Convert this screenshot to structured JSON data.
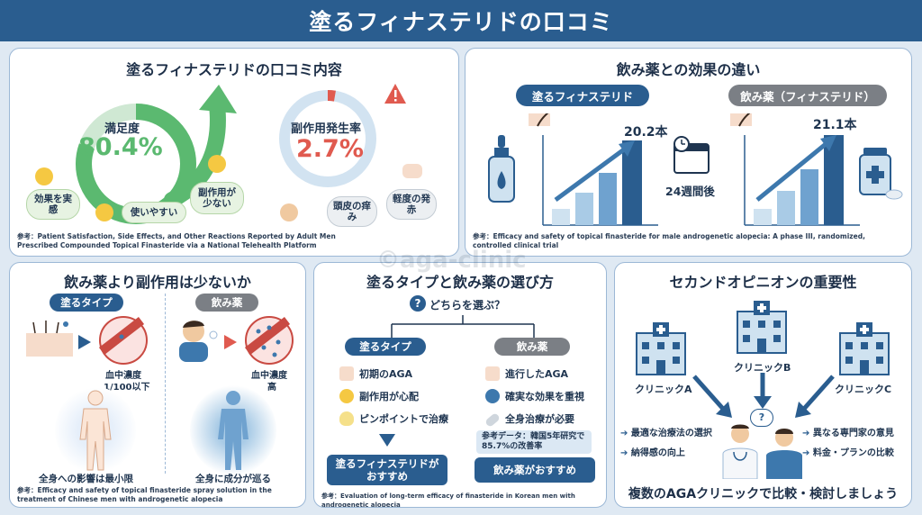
{
  "page": {
    "title": "塗るフィナステリドの口コミ",
    "watermark": "©aga-clinic"
  },
  "panel1": {
    "title": "塗るフィナステリドの口コミ内容",
    "satisfaction_label": "満足度",
    "satisfaction_value": "80.4%",
    "satisfaction_fraction": 0.804,
    "side_effect_label": "副作用発生率",
    "side_effect_value": "2.7%",
    "side_effect_fraction": 0.027,
    "bubbles": [
      "効果を実感",
      "使いやすい",
      "副作用が少ない"
    ],
    "side_bubbles": [
      "頭皮の痒み",
      "軽度の発赤"
    ],
    "ref": "参考：Patient Satisfaction, Side Effects, and Other Reactions Reported by Adult Men Prescribed Compounded Topical Finasteride via a National Telehealth Platform"
  },
  "panel2": {
    "title": "飲み薬との効果の違い",
    "left_label": "塗るフィナステリド",
    "right_label": "飲み薬（フィナステリド）",
    "left_value": "20.2本",
    "right_value": "21.1本",
    "period": "24週間後",
    "ref": "参考：Efficacy and safety of topical finasteride for male androgenetic alopecia: A phase III, randomized, controlled clinical trial"
  },
  "panel3": {
    "title": "飲み薬より副作用は少ないか",
    "left_label": "塗るタイプ",
    "right_label": "飲み薬",
    "left_conc_label": "血中濃度",
    "left_conc_value": "1/100以下",
    "right_conc_label": "血中濃度",
    "right_conc_value": "高",
    "left_caption": "全身への影響は最小限",
    "right_caption": "全身に成分が巡る",
    "ref": "参考：Efficacy and safety of topical finasteride spray solution in the treatment of Chinese men with androgenetic alopecia"
  },
  "panel4": {
    "title": "塗るタイプと飲み薬の選び方",
    "question": "どちらを選ぶ？",
    "left_label": "塗るタイプ",
    "right_label": "飲み薬",
    "left_items": [
      "初期のAGA",
      "副作用が心配",
      "ピンポイントで治療"
    ],
    "right_items": [
      "進行したAGA",
      "確実な効果を重視",
      "全身治療が必要"
    ],
    "note": "参考データ：韓国5年研究で85.7%の改善率",
    "left_button": "塗るフィナステリドがおすすめ",
    "right_button": "飲み薬がおすすめ",
    "ref": "参考：Evaluation of long-term efficacy of finasteride in Korean men with androgenetic alopecia"
  },
  "panel5": {
    "title": "セカンドオピニオンの重要性",
    "clinics": [
      "クリニックA",
      "クリニックB",
      "クリニックC"
    ],
    "left_points": [
      "最適な治療法の選択",
      "納得感の向上"
    ],
    "right_points": [
      "異なる専門家の意見",
      "料金・プランの比較"
    ],
    "footer": "複数のAGAクリニックで比較・検討しましょう"
  },
  "colors": {
    "navy": "#2a5d8f",
    "green": "#5bb970",
    "red": "#e05a4f",
    "grey": "#7b7f85"
  }
}
